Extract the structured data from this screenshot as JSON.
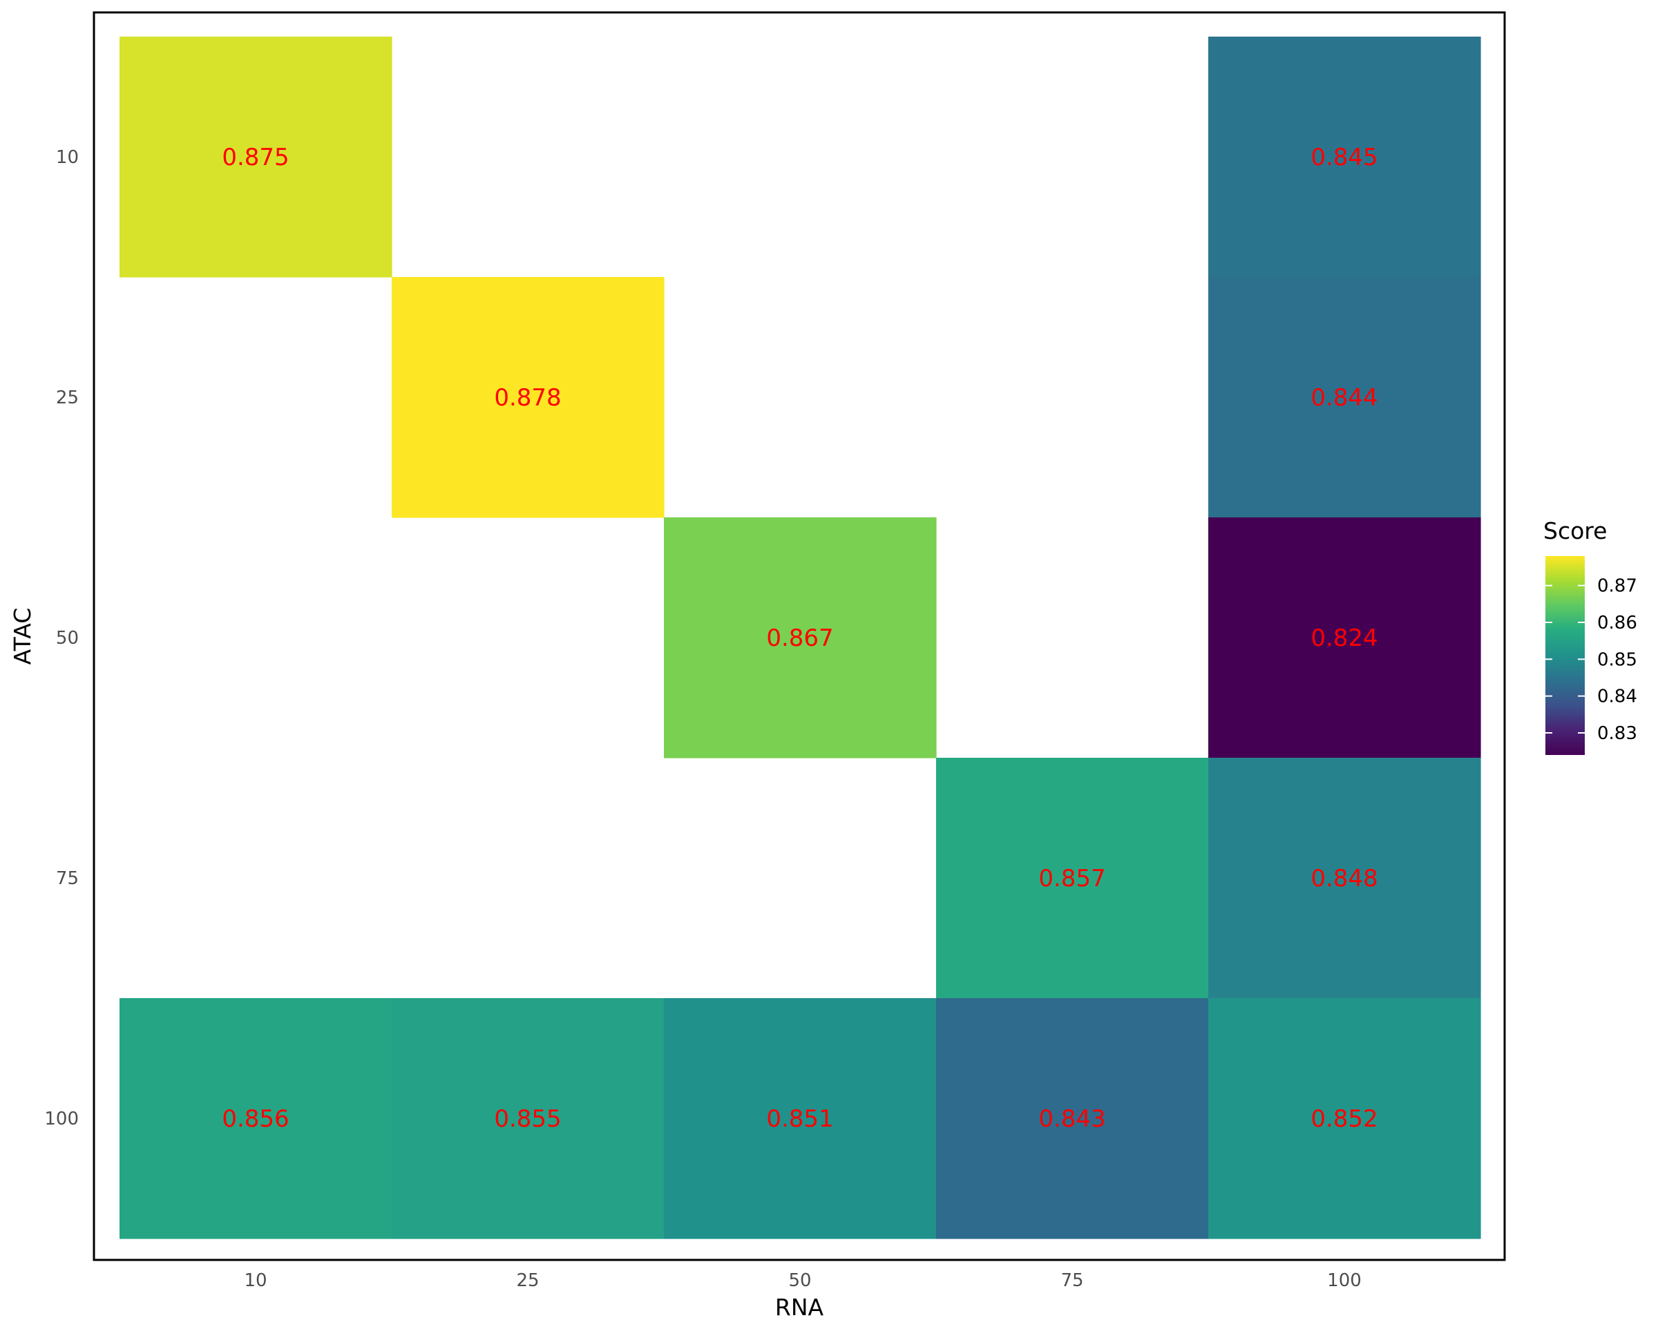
{
  "chart_data": {
    "type": "heatmap",
    "title": "",
    "xlabel": "RNA",
    "ylabel": "ATAC",
    "x_categories": [
      "10",
      "25",
      "50",
      "75",
      "100"
    ],
    "y_categories": [
      "10",
      "25",
      "50",
      "75",
      "100"
    ],
    "y_order": "top-to-bottom",
    "cells": [
      {
        "x": "10",
        "y": "10",
        "value": 0.875,
        "label": "0.875"
      },
      {
        "x": "100",
        "y": "10",
        "value": 0.845,
        "label": "0.845"
      },
      {
        "x": "25",
        "y": "25",
        "value": 0.878,
        "label": "0.878"
      },
      {
        "x": "100",
        "y": "25",
        "value": 0.844,
        "label": "0.844"
      },
      {
        "x": "50",
        "y": "50",
        "value": 0.867,
        "label": "0.867"
      },
      {
        "x": "100",
        "y": "50",
        "value": 0.824,
        "label": "0.824"
      },
      {
        "x": "75",
        "y": "75",
        "value": 0.857,
        "label": "0.857"
      },
      {
        "x": "100",
        "y": "75",
        "value": 0.848,
        "label": "0.848"
      },
      {
        "x": "10",
        "y": "100",
        "value": 0.856,
        "label": "0.856"
      },
      {
        "x": "25",
        "y": "100",
        "value": 0.855,
        "label": "0.855"
      },
      {
        "x": "50",
        "y": "100",
        "value": 0.851,
        "label": "0.851"
      },
      {
        "x": "75",
        "y": "100",
        "value": 0.843,
        "label": "0.843"
      },
      {
        "x": "100",
        "y": "100",
        "value": 0.852,
        "label": "0.852"
      }
    ],
    "legend": {
      "title": "Score",
      "position": "right",
      "range": [
        0.824,
        0.878
      ],
      "ticks": [
        0.83,
        0.84,
        0.85,
        0.86,
        0.87
      ],
      "tick_labels": [
        "0.83",
        "0.84",
        "0.85",
        "0.86",
        "0.87"
      ]
    },
    "colormap": "viridis",
    "cell_label_color": "#ff0000",
    "grid": false,
    "panel_border": true
  }
}
